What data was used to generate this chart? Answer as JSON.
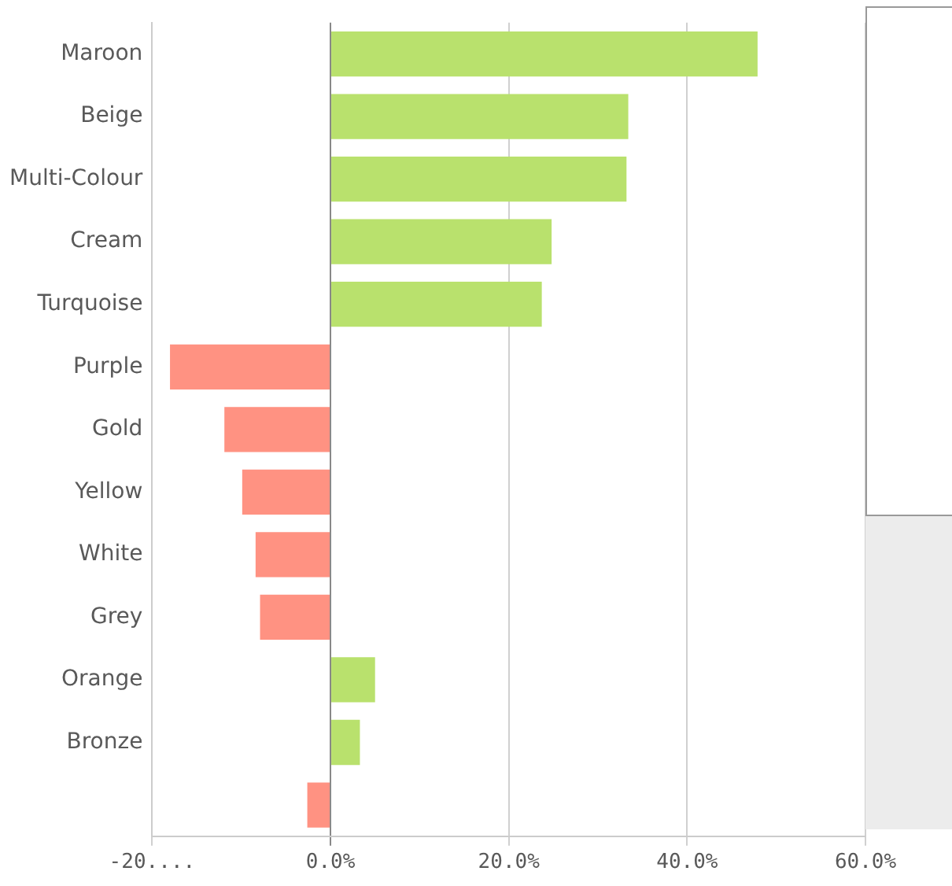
{
  "chart_data": {
    "type": "bar",
    "orientation": "horizontal",
    "categories": [
      "Maroon",
      "Beige",
      "Multi-Colour",
      "Cream",
      "Turquoise",
      "Purple",
      "Gold",
      "Yellow",
      "White",
      "Grey",
      "Orange",
      "Bronze",
      null
    ],
    "values": [
      47.9,
      33.4,
      33.2,
      24.8,
      23.7,
      -18.0,
      -11.9,
      -9.9,
      -8.4,
      -7.9,
      5.0,
      3.3,
      -2.6
    ],
    "colors": [
      "#b9e16d",
      "#b9e16d",
      "#b9e16d",
      "#b9e16d",
      "#b9e16d",
      "#ff9282",
      "#ff9282",
      "#ff9282",
      "#ff9282",
      "#ff9282",
      "#b9e16d",
      "#b9e16d",
      "#ff9282"
    ],
    "xlim": [
      -20,
      60
    ],
    "xticks": [
      {
        "value": -20,
        "label": "-20...."
      },
      {
        "value": 0,
        "label": "0.0%"
      },
      {
        "value": 20,
        "label": "20.0%"
      },
      {
        "value": 40,
        "label": "40.0%"
      },
      {
        "value": 60,
        "label": "60.0%"
      }
    ],
    "grid": "x",
    "legend": false
  }
}
